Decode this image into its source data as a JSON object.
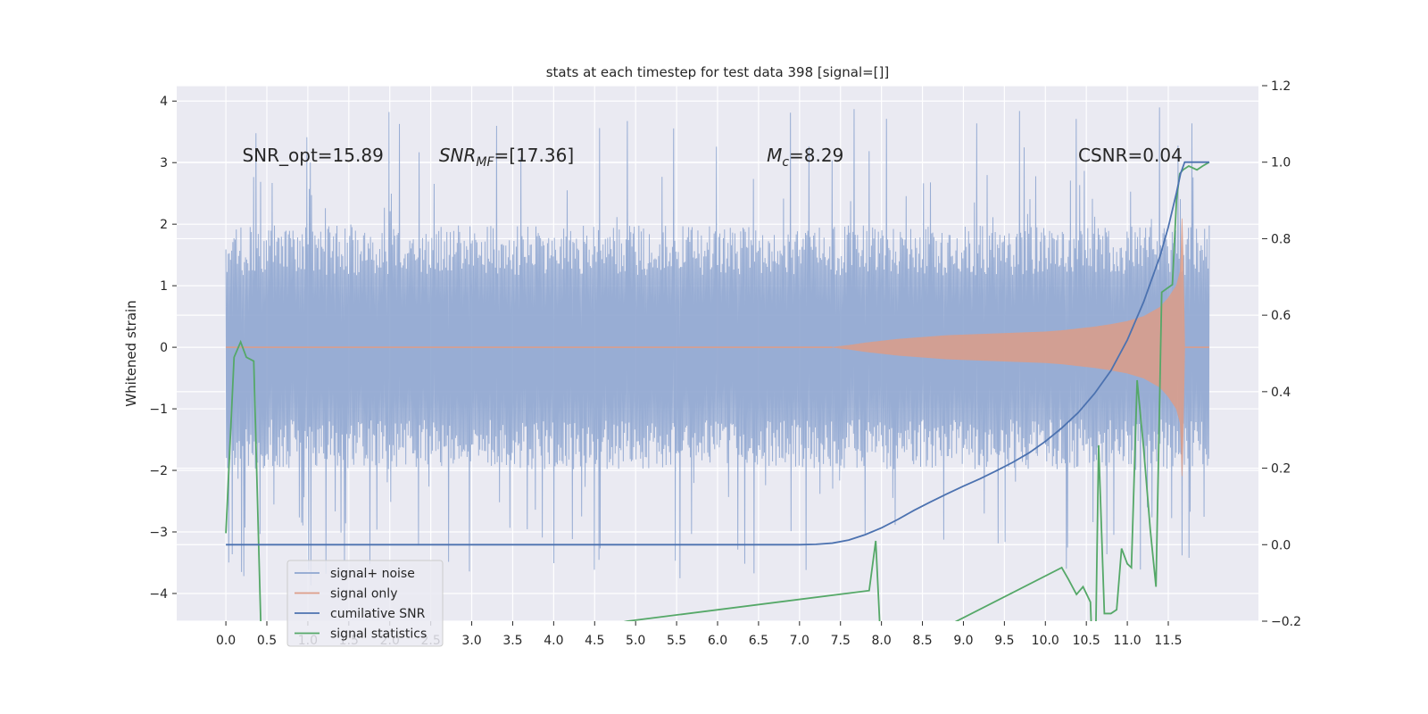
{
  "chart_data": {
    "type": "line",
    "title": "stats at each timestep for test data 398 [signal=[]]",
    "xlabel": "",
    "ylabel": "Whitened strain",
    "y2label": "",
    "xlim": [
      -0.6,
      12.6
    ],
    "ylim": [
      -4.45,
      4.25
    ],
    "y2lim": [
      -0.2,
      1.2
    ],
    "xticks": [
      0.0,
      0.5,
      1.0,
      1.5,
      2.0,
      2.5,
      3.0,
      3.5,
      4.0,
      4.5,
      5.0,
      5.5,
      6.0,
      6.5,
      7.0,
      7.5,
      8.0,
      8.5,
      9.0,
      9.5,
      10.0,
      10.5,
      11.0,
      11.5
    ],
    "xtick_labels": [
      "0.0",
      "0.5",
      "1.0",
      "1.5",
      "2.0",
      "2.5",
      "3.0",
      "3.5",
      "4.0",
      "4.5",
      "5.0",
      "5.5",
      "6.0",
      "6.5",
      "7.0",
      "7.5",
      "8.0",
      "8.5",
      "9.0",
      "9.5",
      "10.0",
      "10.5",
      "11.0",
      "11.5"
    ],
    "yticks": [
      -4,
      -3,
      -2,
      -1,
      0,
      1,
      2,
      3,
      4
    ],
    "ytick_labels": [
      "−4",
      "−3",
      "−2",
      "−1",
      "0",
      "1",
      "2",
      "3",
      "4"
    ],
    "y2ticks": [
      -0.2,
      0.0,
      0.2,
      0.4,
      0.6,
      0.8,
      1.0,
      1.2
    ],
    "y2tick_labels": [
      "−0.2",
      "0.0",
      "0.2",
      "0.4",
      "0.6",
      "0.8",
      "1.0",
      "1.2"
    ],
    "grid": true,
    "legend_position": "lower-left",
    "noise_band": {
      "x_start": 0.0,
      "x_end": 12.0,
      "typical_amplitude": 1.8,
      "max_value": 3.9,
      "min_value": -3.9
    },
    "series": [
      {
        "name": "signal+ noise",
        "axis": "left",
        "color": "#8fa6d0",
        "representation": "dense noise band, ±1.8 typical, peaks to ±3.9 over 0–12"
      },
      {
        "name": "signal only",
        "axis": "left",
        "color": "#dd9d88",
        "representation": "chirp envelope",
        "envelope_x": [
          7.4,
          7.6,
          7.8,
          8.0,
          8.2,
          8.4,
          8.6,
          8.8,
          9.0,
          9.2,
          9.4,
          9.6,
          9.8,
          10.0,
          10.2,
          10.4,
          10.6,
          10.8,
          11.0,
          11.2,
          11.4,
          11.5,
          11.6,
          11.65,
          11.67,
          11.7
        ],
        "envelope_amp": [
          0.0,
          0.03,
          0.07,
          0.1,
          0.13,
          0.15,
          0.17,
          0.19,
          0.2,
          0.21,
          0.22,
          0.23,
          0.24,
          0.25,
          0.27,
          0.3,
          0.33,
          0.37,
          0.42,
          0.5,
          0.65,
          0.8,
          1.0,
          1.25,
          2.2,
          0.0
        ],
        "after_merger": "0.0 from 11.7 to 12.0"
      },
      {
        "name": "cumilative SNR",
        "axis": "right",
        "color": "#4c72b0",
        "x": [
          0.0,
          7.0,
          7.2,
          7.4,
          7.6,
          7.8,
          8.0,
          8.2,
          8.4,
          8.6,
          8.8,
          9.0,
          9.2,
          9.4,
          9.6,
          9.8,
          10.0,
          10.2,
          10.4,
          10.6,
          10.8,
          11.0,
          11.2,
          11.4,
          11.5,
          11.6,
          11.65,
          11.7,
          12.0
        ],
        "values": [
          0.0,
          0.0,
          0.001,
          0.004,
          0.012,
          0.026,
          0.044,
          0.066,
          0.09,
          0.112,
          0.133,
          0.153,
          0.172,
          0.193,
          0.215,
          0.24,
          0.27,
          0.305,
          0.345,
          0.395,
          0.455,
          0.535,
          0.635,
          0.755,
          0.83,
          0.92,
          0.97,
          1.0,
          1.0
        ]
      },
      {
        "name": "signal statistics",
        "axis": "right",
        "color": "#55a868",
        "x": [
          0.0,
          0.1,
          0.18,
          0.25,
          0.34,
          0.45,
          4.9,
          7.85,
          7.93,
          8.0,
          10.2,
          10.28,
          10.38,
          10.46,
          10.55,
          10.6,
          10.65,
          10.72,
          10.8,
          10.87,
          10.93,
          11.0,
          11.05,
          11.12,
          11.2,
          11.28,
          11.35,
          11.42,
          11.55,
          11.6,
          11.64,
          11.68,
          11.75,
          11.85,
          11.92,
          12.0
        ],
        "values": [
          0.03,
          0.49,
          0.53,
          0.49,
          0.48,
          -0.4,
          -0.2,
          -0.12,
          0.01,
          -0.3,
          -0.06,
          -0.09,
          -0.13,
          -0.11,
          -0.15,
          -0.45,
          0.26,
          -0.18,
          -0.18,
          -0.17,
          -0.01,
          -0.05,
          -0.06,
          0.43,
          0.25,
          0.04,
          -0.11,
          0.66,
          0.68,
          0.9,
          0.97,
          0.98,
          0.99,
          0.98,
          0.99,
          1.0
        ]
      }
    ],
    "annotations": [
      {
        "text": "SNR_opt=15.89",
        "x": 0.2,
        "y": 3.0
      },
      {
        "text": "SNR_MF=[17.36]",
        "x": 2.6,
        "y": 3.0
      },
      {
        "text": "M_c=8.29",
        "x": 6.6,
        "y": 3.0
      },
      {
        "text": "CSNR=0.04",
        "x": 10.4,
        "y": 3.0
      }
    ],
    "legend": [
      {
        "label": "signal+ noise",
        "color": "#8fa6d0"
      },
      {
        "label": "signal only",
        "color": "#dd9d88"
      },
      {
        "label": "cumilative SNR",
        "color": "#4c72b0"
      },
      {
        "label": "signal statistics",
        "color": "#55a868"
      }
    ]
  }
}
